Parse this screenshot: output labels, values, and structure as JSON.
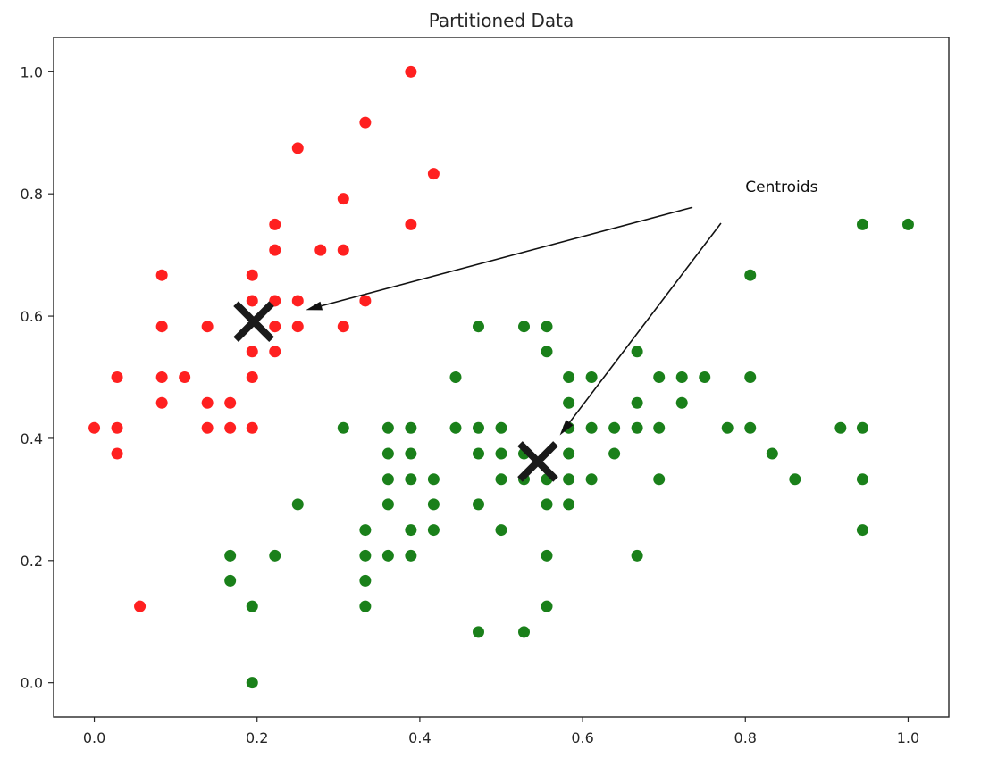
{
  "chart_data": {
    "type": "scatter",
    "title": "Partitioned Data",
    "xlabel": "",
    "ylabel": "",
    "xlim": [
      -0.05,
      1.05
    ],
    "ylim": [
      -0.056,
      1.056
    ],
    "x_ticks": [
      0.0,
      0.2,
      0.4,
      0.6,
      0.8,
      1.0
    ],
    "x_tick_labels": [
      "0.0",
      "0.2",
      "0.4",
      "0.6",
      "0.8",
      "1.0"
    ],
    "y_ticks": [
      0.0,
      0.2,
      0.4,
      0.6,
      0.8,
      1.0
    ],
    "y_tick_labels": [
      "0.0",
      "0.2",
      "0.4",
      "0.6",
      "0.8",
      "1.0"
    ],
    "grid": false,
    "series": [
      {
        "color": "#ff2020",
        "points": [
          [
            0.0,
            0.417
          ],
          [
            0.028,
            0.5
          ],
          [
            0.028,
            0.417
          ],
          [
            0.028,
            0.375
          ],
          [
            0.056,
            0.125
          ],
          [
            0.083,
            0.667
          ],
          [
            0.083,
            0.583
          ],
          [
            0.083,
            0.5
          ],
          [
            0.083,
            0.458
          ],
          [
            0.111,
            0.5
          ],
          [
            0.139,
            0.583
          ],
          [
            0.139,
            0.458
          ],
          [
            0.139,
            0.417
          ],
          [
            0.167,
            0.458
          ],
          [
            0.167,
            0.417
          ],
          [
            0.194,
            0.667
          ],
          [
            0.194,
            0.625
          ],
          [
            0.194,
            0.542
          ],
          [
            0.194,
            0.5
          ],
          [
            0.194,
            0.417
          ],
          [
            0.222,
            0.75
          ],
          [
            0.222,
            0.708
          ],
          [
            0.222,
            0.625
          ],
          [
            0.222,
            0.583
          ],
          [
            0.222,
            0.542
          ],
          [
            0.25,
            0.875
          ],
          [
            0.25,
            0.625
          ],
          [
            0.25,
            0.583
          ],
          [
            0.278,
            0.708
          ],
          [
            0.306,
            0.792
          ],
          [
            0.306,
            0.708
          ],
          [
            0.306,
            0.583
          ],
          [
            0.333,
            0.917
          ],
          [
            0.333,
            0.625
          ],
          [
            0.389,
            1.0
          ],
          [
            0.389,
            0.75
          ],
          [
            0.417,
            0.833
          ]
        ]
      },
      {
        "color": "#1a801a",
        "points": [
          [
            0.167,
            0.208
          ],
          [
            0.167,
            0.167
          ],
          [
            0.194,
            0.125
          ],
          [
            0.194,
            0.0
          ],
          [
            0.222,
            0.208
          ],
          [
            0.25,
            0.292
          ],
          [
            0.306,
            0.417
          ],
          [
            0.333,
            0.25
          ],
          [
            0.333,
            0.208
          ],
          [
            0.333,
            0.167
          ],
          [
            0.333,
            0.125
          ],
          [
            0.361,
            0.417
          ],
          [
            0.361,
            0.375
          ],
          [
            0.361,
            0.333
          ],
          [
            0.361,
            0.292
          ],
          [
            0.361,
            0.208
          ],
          [
            0.389,
            0.417
          ],
          [
            0.389,
            0.375
          ],
          [
            0.389,
            0.333
          ],
          [
            0.389,
            0.25
          ],
          [
            0.389,
            0.208
          ],
          [
            0.417,
            0.333
          ],
          [
            0.417,
            0.292
          ],
          [
            0.417,
            0.25
          ],
          [
            0.444,
            0.5
          ],
          [
            0.444,
            0.417
          ],
          [
            0.472,
            0.583
          ],
          [
            0.472,
            0.417
          ],
          [
            0.472,
            0.375
          ],
          [
            0.472,
            0.292
          ],
          [
            0.472,
            0.083
          ],
          [
            0.5,
            0.417
          ],
          [
            0.5,
            0.375
          ],
          [
            0.5,
            0.333
          ],
          [
            0.5,
            0.25
          ],
          [
            0.528,
            0.583
          ],
          [
            0.528,
            0.375
          ],
          [
            0.528,
            0.333
          ],
          [
            0.528,
            0.083
          ],
          [
            0.556,
            0.583
          ],
          [
            0.556,
            0.542
          ],
          [
            0.556,
            0.333
          ],
          [
            0.556,
            0.292
          ],
          [
            0.556,
            0.208
          ],
          [
            0.556,
            0.125
          ],
          [
            0.583,
            0.5
          ],
          [
            0.583,
            0.458
          ],
          [
            0.583,
            0.417
          ],
          [
            0.583,
            0.375
          ],
          [
            0.583,
            0.333
          ],
          [
            0.583,
            0.292
          ],
          [
            0.611,
            0.5
          ],
          [
            0.611,
            0.417
          ],
          [
            0.611,
            0.333
          ],
          [
            0.639,
            0.417
          ],
          [
            0.639,
            0.375
          ],
          [
            0.667,
            0.542
          ],
          [
            0.667,
            0.458
          ],
          [
            0.667,
            0.417
          ],
          [
            0.667,
            0.208
          ],
          [
            0.694,
            0.5
          ],
          [
            0.694,
            0.417
          ],
          [
            0.694,
            0.333
          ],
          [
            0.722,
            0.5
          ],
          [
            0.722,
            0.458
          ],
          [
            0.75,
            0.5
          ],
          [
            0.778,
            0.417
          ],
          [
            0.806,
            0.667
          ],
          [
            0.806,
            0.5
          ],
          [
            0.806,
            0.417
          ],
          [
            0.833,
            0.375
          ],
          [
            0.861,
            0.333
          ],
          [
            0.917,
            0.417
          ],
          [
            0.944,
            0.75
          ],
          [
            0.944,
            0.417
          ],
          [
            0.944,
            0.333
          ],
          [
            0.944,
            0.25
          ],
          [
            1.0,
            0.75
          ]
        ]
      }
    ],
    "centroids": [
      [
        0.196,
        0.591
      ],
      [
        0.545,
        0.362
      ]
    ],
    "centroid_color": "#1a1a1a",
    "annotation": {
      "text": "Centroids",
      "position": [
        0.8,
        0.8
      ],
      "arrow_tails": [
        [
          0.735,
          0.778
        ],
        [
          0.77,
          0.752
        ]
      ],
      "arrow_heads": [
        [
          0.26,
          0.61
        ],
        [
          0.572,
          0.405
        ]
      ]
    }
  }
}
